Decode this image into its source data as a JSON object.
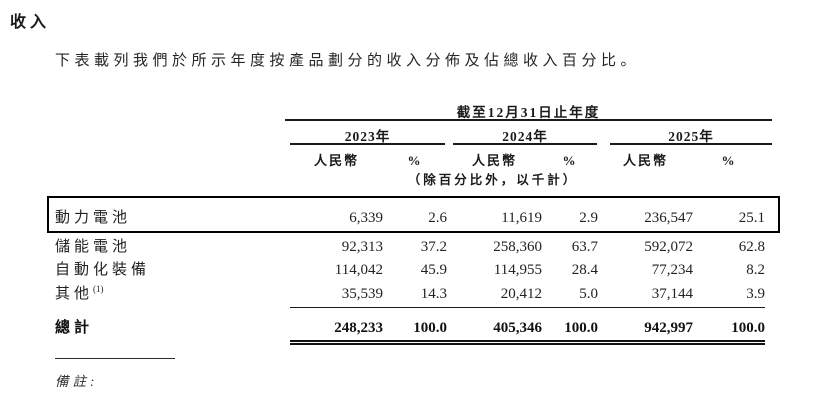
{
  "page": {
    "title": "收入",
    "intro": "下表載列我們於所示年度按產品劃分的收入分佈及佔總收入百分比。",
    "notes_label": "備註:"
  },
  "table": {
    "period_header": "截至12月31日止年度",
    "unit_note": "（除百分比外，以千計）",
    "year_groups": [
      {
        "label": "2023年",
        "col1": "人民幣",
        "col2": "%"
      },
      {
        "label": "2024年",
        "col1": "人民幣",
        "col2": "%"
      },
      {
        "label": "2025年",
        "col1": "人民幣",
        "col2": "%"
      }
    ],
    "rows": [
      {
        "label": "動力電池",
        "sup": "",
        "highlighted": true,
        "values": [
          "6,339",
          "2.6",
          "11,619",
          "2.9",
          "236,547",
          "25.1"
        ]
      },
      {
        "label": "儲能電池",
        "sup": "",
        "highlighted": false,
        "values": [
          "92,313",
          "37.2",
          "258,360",
          "63.7",
          "592,072",
          "62.8"
        ]
      },
      {
        "label": "自動化裝備",
        "sup": "",
        "highlighted": false,
        "values": [
          "114,042",
          "45.9",
          "114,955",
          "28.4",
          "77,234",
          "8.2"
        ]
      },
      {
        "label": "其他",
        "sup": "(1)",
        "highlighted": false,
        "values": [
          "35,539",
          "14.3",
          "20,412",
          "5.0",
          "37,144",
          "3.9"
        ]
      }
    ],
    "total_row": {
      "label": "總計",
      "values": [
        "248,233",
        "100.0",
        "405,346",
        "100.0",
        "942,997",
        "100.0"
      ]
    }
  }
}
